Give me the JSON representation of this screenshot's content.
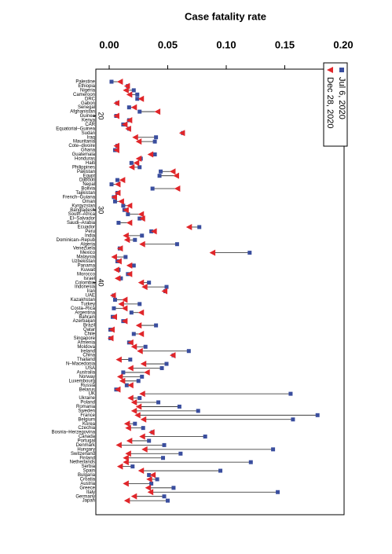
{
  "chart_data": {
    "type": "dumbbell",
    "title": "Case fatality rate",
    "categories": [
      "Palestine",
      "Ethiopia",
      "Nigeria",
      "Cameroon",
      "DRC",
      "Gabon",
      "Senegal",
      "Afghanistan",
      "Guinea",
      "Kenya",
      "CAR",
      "Equatorial–Guinea",
      "Sudan",
      "Iraq",
      "Mauritania",
      "Cote–divoire",
      "Ghana",
      "Guatemala",
      "Honduras",
      "Haiti",
      "Philippines",
      "Pakistan",
      "Egypt",
      "Djibouti",
      "Nepal",
      "Bolivia",
      "Tajikistan",
      "French–Guiana",
      "Oman",
      "Kyrgyzstan",
      "Bangladesh",
      "South–Africa",
      "El–Salvador",
      "Saudi–Arabia",
      "Ecuador",
      "Peru",
      "India",
      "Dominican–Repub",
      "Algeria",
      "Venezuela",
      "Mexico",
      "Malaysia",
      "Uzbekistan",
      "Panama",
      "Kuwait",
      "Morocco",
      "Israel",
      "Colombia",
      "Indonesia",
      "Iran",
      "UAE",
      "Kazakhstan",
      "Turkey",
      "Costa–Rica",
      "Argentina",
      "Bahrain",
      "Azerbaijan",
      "Brazil",
      "Qatar",
      "Chile",
      "Singapore",
      "Armenia",
      "Moldova",
      "Ireland",
      "China",
      "Thailand",
      "N–Macedonia",
      "USA",
      "Australia",
      "Norway",
      "Luxembourg",
      "Russia",
      "Belarus",
      "UK",
      "Ukraine",
      "Poland",
      "Romania",
      "Sweden",
      "France",
      "Belgium",
      "Korea",
      "Czechia",
      "Bosnia–Herzegovina",
      "Canada",
      "Portugal",
      "Denmark",
      "Hungary",
      "Switzerland",
      "Finland",
      "Netherlands",
      "Serbia",
      "Spain",
      "Bulgaria",
      "Croatia",
      "Austria",
      "Greece",
      "Italy",
      "Germany",
      "Japan"
    ],
    "series": [
      {
        "name": "Jul 6, 2020",
        "color": "#3a4e9e",
        "marker": "square",
        "values": [
          0.002,
          0.016,
          0.021,
          0.024,
          0.024,
          0.007,
          0.017,
          0.026,
          0.006,
          0.017,
          0.012,
          0.017,
          0.063,
          0.04,
          0.039,
          0.007,
          0.005,
          0.039,
          0.027,
          0.019,
          0.026,
          0.044,
          0.043,
          0.007,
          0.002,
          0.037,
          0.007,
          0.004,
          0.005,
          0.012,
          0.013,
          0.016,
          0.026,
          0.008,
          0.077,
          0.036,
          0.028,
          0.022,
          0.058,
          0.009,
          0.12,
          0.014,
          0.007,
          0.021,
          0.008,
          0.016,
          0.01,
          0.034,
          0.049,
          0.048,
          0.004,
          0.005,
          0.026,
          0.004,
          0.019,
          0.003,
          0.012,
          0.04,
          0.001,
          0.021,
          0.001,
          0.017,
          0.031,
          0.068,
          0.055,
          0.018,
          0.049,
          0.045,
          0.012,
          0.028,
          0.025,
          0.015,
          0.006,
          0.155,
          0.026,
          0.042,
          0.06,
          0.076,
          0.178,
          0.157,
          0.022,
          0.029,
          0.037,
          0.082,
          0.034,
          0.047,
          0.14,
          0.061,
          0.046,
          0.121,
          0.02,
          0.095,
          0.034,
          0.041,
          0.036,
          0.055,
          0.144,
          0.047,
          0.05
        ]
      },
      {
        "name": "Dec 28, 2020",
        "color": "#e0262a",
        "marker": "triangle",
        "values": [
          0.009,
          0.015,
          0.014,
          0.017,
          0.027,
          0.006,
          0.021,
          0.041,
          0.006,
          0.017,
          0.013,
          0.016,
          0.062,
          0.022,
          0.025,
          0.006,
          0.006,
          0.035,
          0.025,
          0.023,
          0.019,
          0.054,
          0.057,
          0.011,
          0.007,
          0.058,
          0.007,
          0.004,
          0.01,
          0.017,
          0.014,
          0.027,
          0.028,
          0.017,
          0.068,
          0.038,
          0.014,
          0.015,
          0.028,
          0.009,
          0.088,
          0.004,
          0.008,
          0.017,
          0.006,
          0.017,
          0.007,
          0.027,
          0.03,
          0.047,
          0.003,
          0.013,
          0.01,
          0.013,
          0.027,
          0.004,
          0.013,
          0.025,
          0.002,
          0.027,
          0.001,
          0.018,
          0.021,
          0.026,
          0.054,
          0.008,
          0.029,
          0.018,
          0.032,
          0.009,
          0.011,
          0.018,
          0.007,
          0.028,
          0.018,
          0.021,
          0.025,
          0.021,
          0.024,
          0.029,
          0.015,
          0.016,
          0.036,
          0.028,
          0.017,
          0.008,
          0.03,
          0.016,
          0.014,
          0.014,
          0.009,
          0.027,
          0.037,
          0.034,
          0.014,
          0.033,
          0.035,
          0.021,
          0.015
        ]
      }
    ],
    "xlim": [
      0,
      0.2
    ],
    "xticks": [
      {
        "value": 0,
        "label": "0.00"
      },
      0.05,
      {
        "value": 0.1,
        "label": "0.10"
      },
      0.15,
      {
        "value": 0.2,
        "label": "0.20"
      }
    ],
    "age_ticks": [
      {
        "value": 20,
        "category": "Guinea"
      },
      {
        "value": 30,
        "category": "Bangladesh"
      },
      {
        "value": 40,
        "category": "Colombia"
      }
    ],
    "legend": "top-right"
  }
}
